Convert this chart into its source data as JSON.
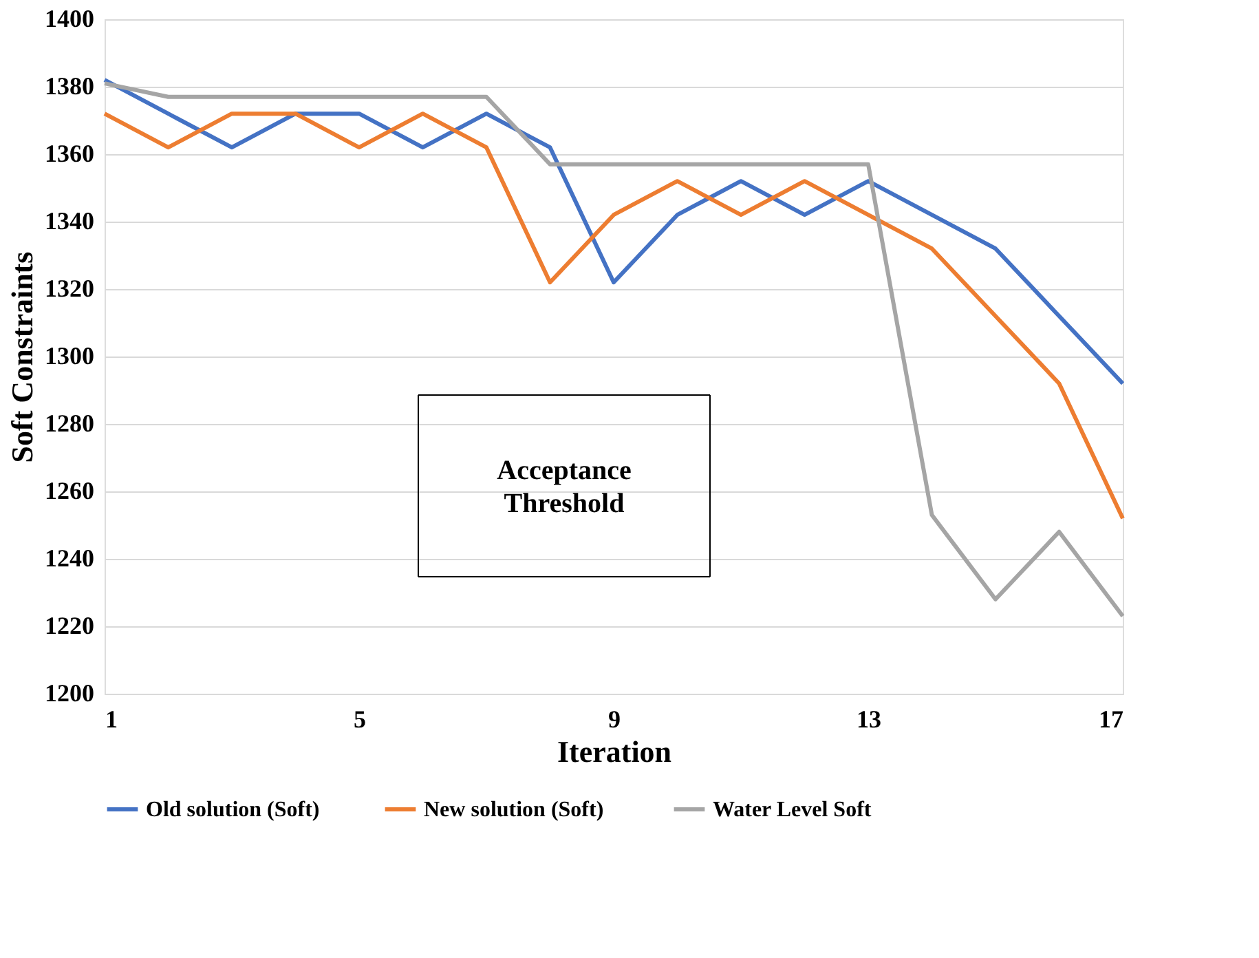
{
  "chart_data": {
    "type": "line",
    "xlabel": "Iteration",
    "ylabel": "Soft Constraints",
    "x": [
      1,
      2,
      3,
      4,
      5,
      6,
      7,
      8,
      9,
      10,
      11,
      12,
      13,
      14,
      15,
      16,
      17
    ],
    "series": [
      {
        "name": "Old solution (Soft)",
        "color": "#4472c4",
        "values": [
          1382,
          1372,
          1362,
          1372,
          1372,
          1362,
          1372,
          1362,
          1322,
          1342,
          1352,
          1342,
          1352,
          1342,
          1332,
          1312,
          1292
        ]
      },
      {
        "name": "New  solution (Soft)",
        "color": "#ed7d31",
        "values": [
          1372,
          1362,
          1372,
          1372,
          1362,
          1372,
          1362,
          1322,
          1342,
          1352,
          1342,
          1352,
          1342,
          1332,
          1312,
          1292,
          1252
        ]
      },
      {
        "name": "Water Level Soft",
        "color": "#a5a5a5",
        "values": [
          1381,
          1377,
          1377,
          1377,
          1377,
          1377,
          1377,
          1357,
          1357,
          1357,
          1357,
          1357,
          1357,
          1253,
          1228,
          1248,
          1223
        ]
      }
    ],
    "xlim": [
      1,
      17
    ],
    "xticks": [
      1,
      5,
      9,
      13,
      17
    ],
    "ylim": [
      1200,
      1400
    ],
    "yticks": [
      1200,
      1220,
      1240,
      1260,
      1280,
      1300,
      1320,
      1340,
      1360,
      1380,
      1400
    ],
    "grid": "y",
    "legend": "bottom",
    "marker": "none",
    "line_style": "solid",
    "annotations": [
      "Acceptance\nThreshold"
    ]
  }
}
